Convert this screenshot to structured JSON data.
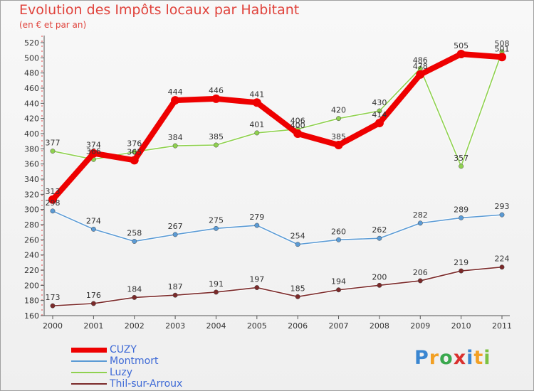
{
  "chart_data": {
    "type": "line",
    "title": "Evolution des Impôts locaux par Habitant",
    "subtitle": "(en € et par an)",
    "xlabel": "",
    "ylabel": "",
    "categories": [
      "2000",
      "2001",
      "2002",
      "2003",
      "2004",
      "2005",
      "2006",
      "2007",
      "2008",
      "2009",
      "2010",
      "2011"
    ],
    "ylim": [
      160,
      520
    ],
    "yticks": [
      160,
      180,
      200,
      220,
      240,
      260,
      280,
      300,
      320,
      340,
      360,
      380,
      400,
      420,
      440,
      460,
      480,
      500,
      520
    ],
    "grid": false,
    "legend_position": "bottom-left",
    "series": [
      {
        "name": "CUZY",
        "color": "#ee0000",
        "values": [
          313,
          374,
          365,
          444,
          446,
          441,
          400,
          385,
          414,
          478,
          505,
          501
        ],
        "labels": [
          "313",
          "374",
          "365",
          "444",
          "446",
          "441",
          "400",
          "385",
          "414",
          "478",
          "505",
          "501"
        ]
      },
      {
        "name": "Montmort",
        "color": "#5b9bd5",
        "values": [
          298,
          274,
          258,
          267,
          275,
          279,
          254,
          260,
          262,
          282,
          289,
          293
        ],
        "labels": [
          "298",
          "274",
          "258",
          "267",
          "275",
          "279",
          "254",
          "260",
          "262",
          "282",
          "289",
          "293"
        ]
      },
      {
        "name": "Luzy",
        "color": "#8fd14f",
        "values": [
          377,
          366,
          376,
          384,
          385,
          401,
          406,
          420,
          430,
          486,
          357,
          508
        ],
        "labels": [
          "377",
          "366",
          "376",
          "384",
          "385",
          "401",
          "406",
          "420",
          "430",
          "486",
          "357",
          "508"
        ]
      },
      {
        "name": "Thil-sur-Arroux",
        "color": "#7b2a2a",
        "values": [
          173,
          176,
          184,
          187,
          191,
          197,
          185,
          194,
          200,
          206,
          219,
          224
        ],
        "labels": [
          "173",
          "176",
          "184",
          "187",
          "191",
          "197",
          "185",
          "194",
          "200",
          "206",
          "219",
          "224"
        ]
      }
    ]
  },
  "logo": {
    "letters": [
      "P",
      "r",
      "o",
      "x",
      "i",
      "t",
      "i"
    ],
    "colors": [
      "#3a86d1",
      "#f2a024",
      "#3aa84e",
      "#d9302e",
      "#3a86d1",
      "#f2a024",
      "#7cc242"
    ]
  }
}
